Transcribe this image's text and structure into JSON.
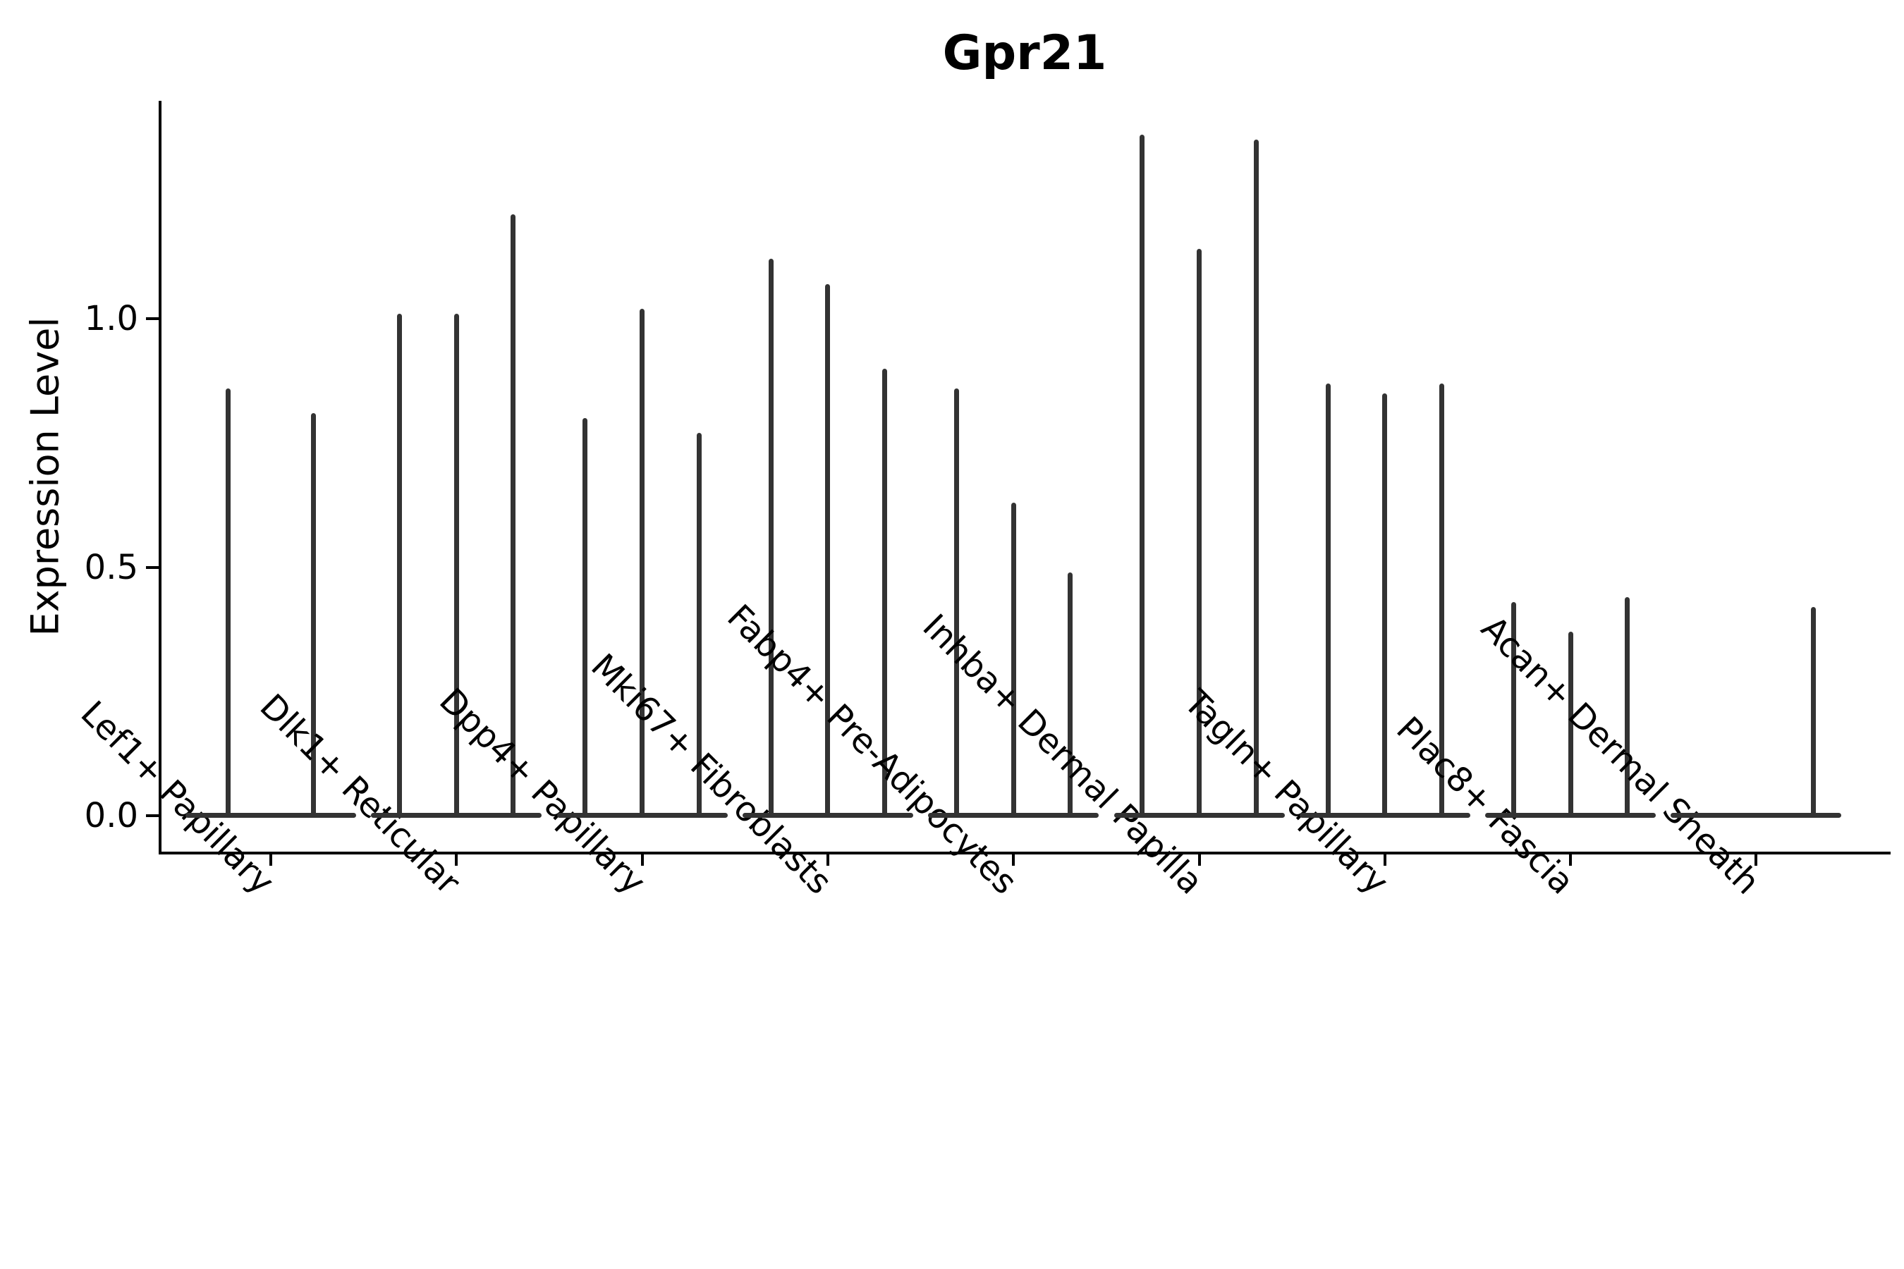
{
  "title": "Gpr21",
  "y_axis": {
    "label": "Expression Level",
    "tick_labels": [
      "0.0",
      "0.5",
      "1.0"
    ],
    "tick_values": [
      0.0,
      0.5,
      1.0
    ]
  },
  "x_axis": {
    "tick_labels": [
      "Lef1+ Papillary",
      "Dlk1+ Reticular",
      "Dpp4+ Papillary",
      "Mki67+ Fibroblasts",
      "Fabp4+ Pre-Adipocytes",
      "Inhba+ Dermal Papilla",
      "Tagln+ Papillary",
      "Plac8+ Fascia",
      "Acan+ Dermal Sheath"
    ]
  },
  "colors": {
    "violin": "#333333",
    "axis": "#000000",
    "text": "#000000",
    "background": "#ffffff"
  },
  "chart_data": {
    "type": "violin",
    "title": "Gpr21",
    "xlabel": "",
    "ylabel": "Expression Level",
    "yticks": [
      0.0,
      0.5,
      1.0
    ],
    "ylim": [
      -0.07,
      1.44
    ],
    "grid": false,
    "legend": "none",
    "categories": [
      "Lef1+ Papillary",
      "Dlk1+ Reticular",
      "Dpp4+ Papillary",
      "Mki67+ Fibroblasts",
      "Fabp4+ Pre-Adipocytes",
      "Inhba+ Dermal Papilla",
      "Tagln+ Papillary",
      "Plac8+ Fascia",
      "Acan+ Dermal Sheath"
    ],
    "description": "Sparse-expression violin plot: each identity shows thin violins that are a wide flat density at 0 with a narrow spike rising to the group's maximum expression value. Lef1+ Papillary shows 2 violins; Acan+ Dermal Sheath shows expression only in its 3rd violin.",
    "groups": [
      {
        "category": "Lef1+ Papillary",
        "violin_maxima": [
          0.86,
          0.81
        ]
      },
      {
        "category": "Dlk1+ Reticular",
        "violin_maxima": [
          1.01,
          1.01,
          1.21
        ]
      },
      {
        "category": "Dpp4+ Papillary",
        "violin_maxima": [
          0.8,
          1.02,
          0.77
        ]
      },
      {
        "category": "Mki67+ Fibroblasts",
        "violin_maxima": [
          1.12,
          1.07,
          0.9
        ]
      },
      {
        "category": "Fabp4+ Pre-Adipocytes",
        "violin_maxima": [
          0.86,
          0.63,
          0.49
        ]
      },
      {
        "category": "Inhba+ Dermal Papilla",
        "violin_maxima": [
          1.37,
          1.14,
          1.36
        ]
      },
      {
        "category": "Tagln+ Papillary",
        "violin_maxima": [
          0.87,
          0.85,
          0.87
        ]
      },
      {
        "category": "Plac8+ Fascia",
        "violin_maxima": [
          0.43,
          0.37,
          0.44
        ]
      },
      {
        "category": "Acan+ Dermal Sheath",
        "violin_maxima": [
          0.0,
          0.0,
          0.42
        ]
      }
    ]
  }
}
